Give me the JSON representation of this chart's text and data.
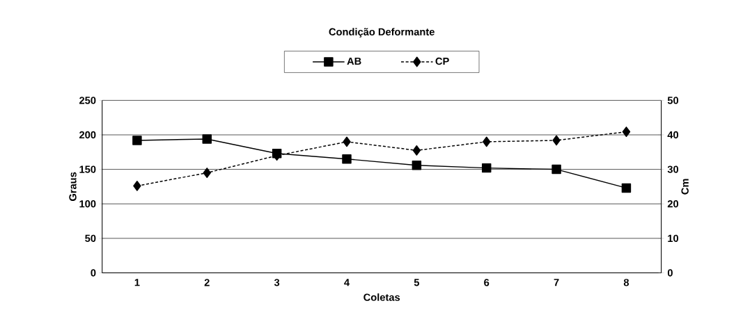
{
  "chart_data": {
    "type": "line",
    "title": "Condição Deformante",
    "xlabel": "Coletas",
    "ylabel": "Graus",
    "y2label": "Cm",
    "categories": [
      "1",
      "2",
      "3",
      "4",
      "5",
      "6",
      "7",
      "8"
    ],
    "series": [
      {
        "name": "AB",
        "color": "#000000",
        "marker": "square",
        "line_style": "solid",
        "values": [
          192,
          194,
          173,
          165,
          156,
          152,
          150,
          123
        ]
      },
      {
        "name": "CP",
        "color": "#000000",
        "marker": "diamond",
        "line_style": "dotted",
        "axis": "y2",
        "values": [
          25.2,
          29,
          34,
          38,
          35.5,
          38,
          38.4,
          40.9
        ]
      }
    ],
    "ylim": [
      0,
      250
    ],
    "yticks": [
      0,
      50,
      100,
      150,
      200,
      250
    ],
    "y2lim": [
      0,
      50
    ],
    "y2ticks": [
      0,
      10,
      20,
      30,
      40,
      50
    ],
    "grid": "y",
    "legend": "top"
  }
}
